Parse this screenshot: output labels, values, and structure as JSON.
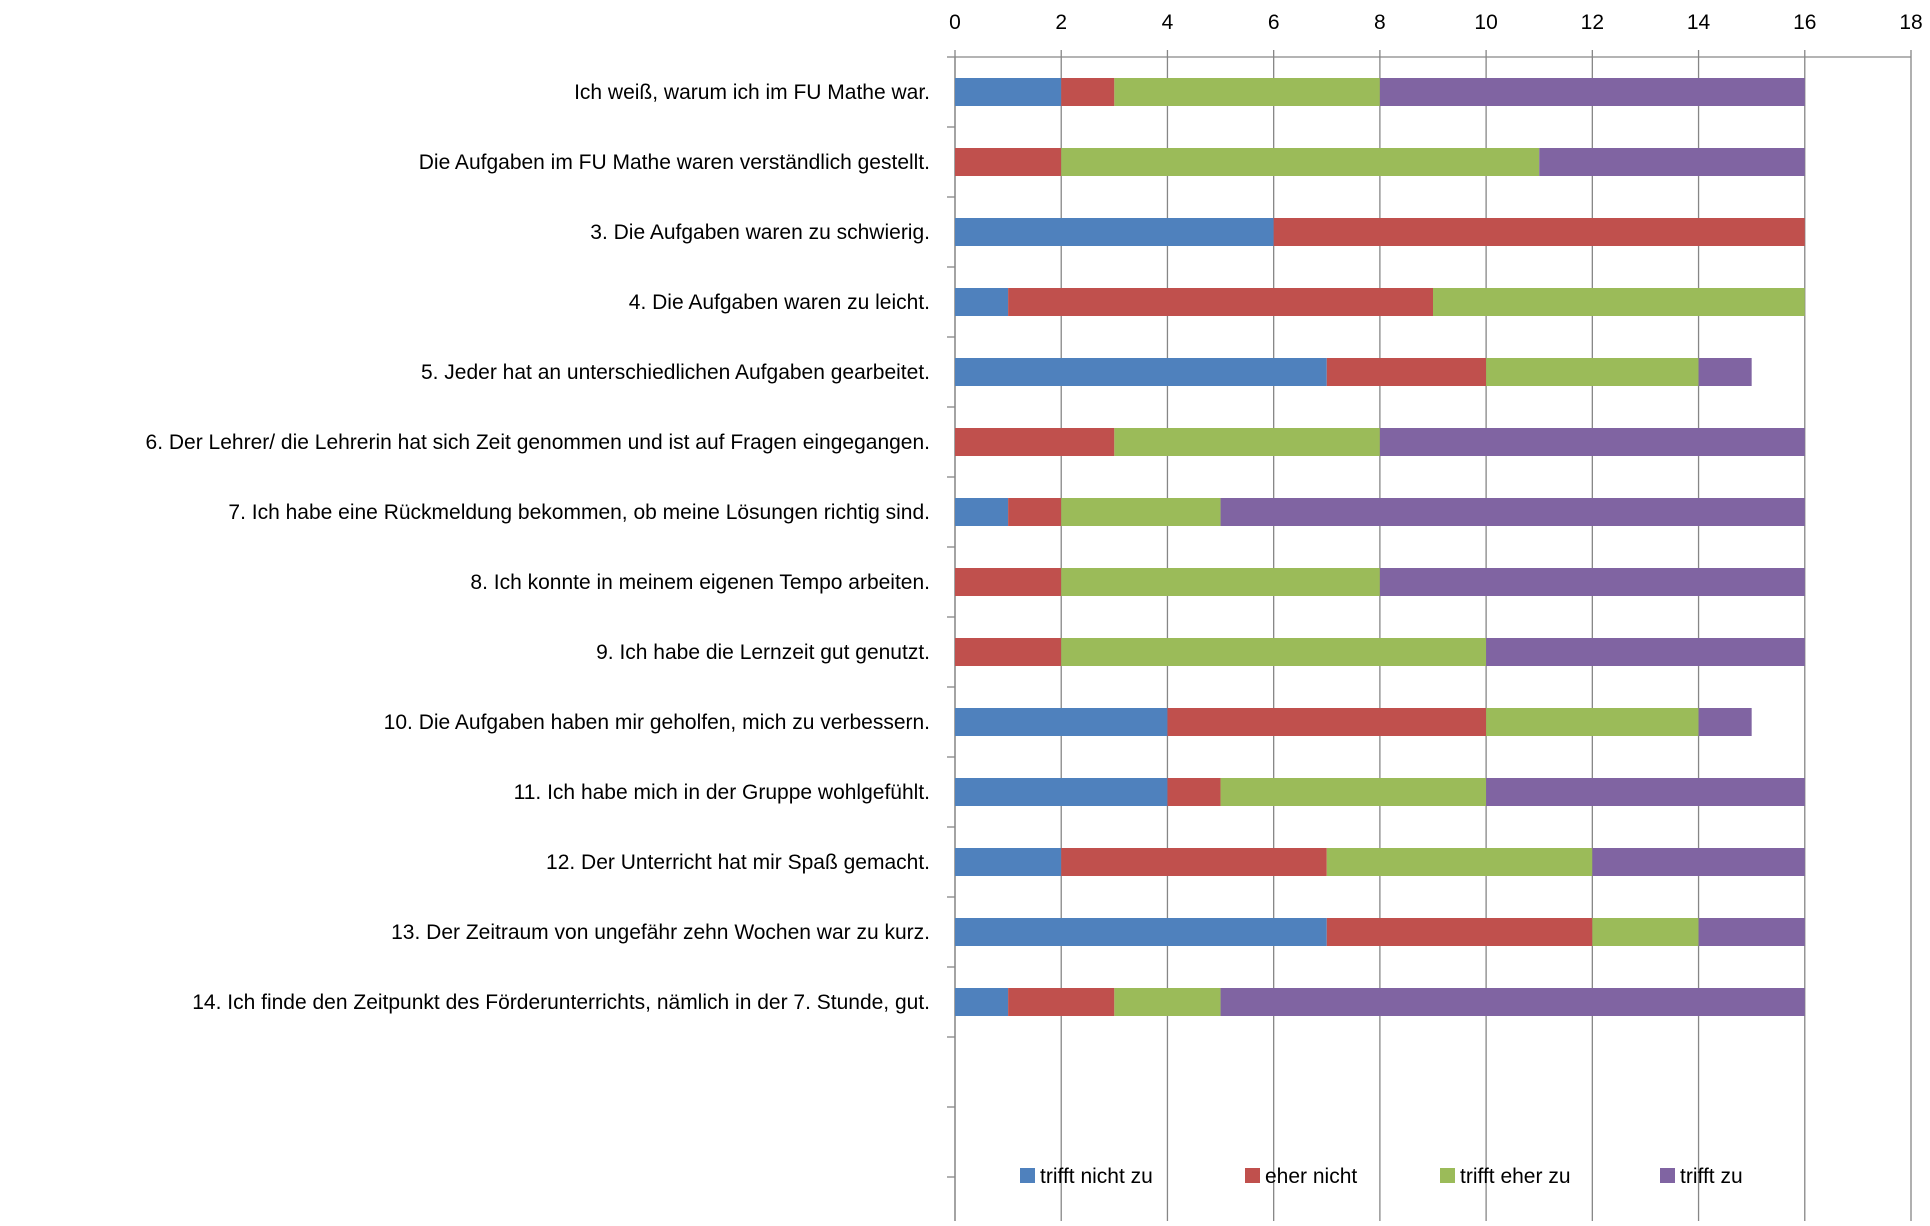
{
  "chart_data": {
    "type": "bar",
    "orientation": "horizontal",
    "stacked": true,
    "title": "",
    "xlabel": "",
    "ylabel": "",
    "xlim": [
      0,
      18
    ],
    "x_ticks": [
      "0",
      "2",
      "4",
      "6",
      "8",
      "10",
      "12",
      "14",
      "16",
      "18"
    ],
    "x_axis_position": "top",
    "grid": "vertical",
    "legend_position": "bottom-inside",
    "categories": [
      "Ich weiß, warum ich im FU Mathe war.",
      "Die Aufgaben im FU Mathe waren verständlich gestellt.",
      "3. Die Aufgaben waren zu schwierig.",
      "4. Die Aufgaben waren zu leicht.",
      "5. Jeder hat an unterschiedlichen Aufgaben gearbeitet.",
      "6. Der Lehrer/ die Lehrerin hat sich Zeit genommen und ist auf Fragen eingegangen.",
      "7. Ich habe eine Rückmeldung bekommen, ob meine Lösungen richtig sind.",
      "8. Ich konnte in meinem eigenen Tempo arbeiten.",
      "9. Ich habe die Lernzeit gut genutzt.",
      "10. Die Aufgaben haben mir geholfen, mich zu verbessern.",
      "11. Ich habe mich in der Gruppe wohlgefühlt.",
      "12. Der Unterricht hat mir Spaß gemacht.",
      "13. Der Zeitraum von ungefähr zehn Wochen war zu kurz.",
      "14. Ich finde den Zeitpunkt des Förderunterrichts, nämlich in der 7. Stunde, gut."
    ],
    "series": [
      {
        "name": "trifft nicht zu",
        "color": "#4F81BD",
        "values": [
          2,
          0,
          6,
          1,
          7,
          0,
          1,
          0,
          0,
          4,
          4,
          2,
          7,
          1
        ]
      },
      {
        "name": "eher nicht",
        "color": "#C0504D",
        "values": [
          1,
          2,
          10,
          8,
          3,
          3,
          1,
          2,
          2,
          6,
          1,
          5,
          5,
          2
        ]
      },
      {
        "name": "trifft eher zu",
        "color": "#9BBB59",
        "values": [
          5,
          9,
          0,
          7,
          4,
          5,
          3,
          6,
          8,
          4,
          5,
          5,
          2,
          2
        ]
      },
      {
        "name": "trifft zu",
        "color": "#8064A2",
        "values": [
          8,
          5,
          0,
          0,
          1,
          8,
          11,
          8,
          6,
          1,
          6,
          4,
          2,
          11
        ]
      }
    ]
  }
}
